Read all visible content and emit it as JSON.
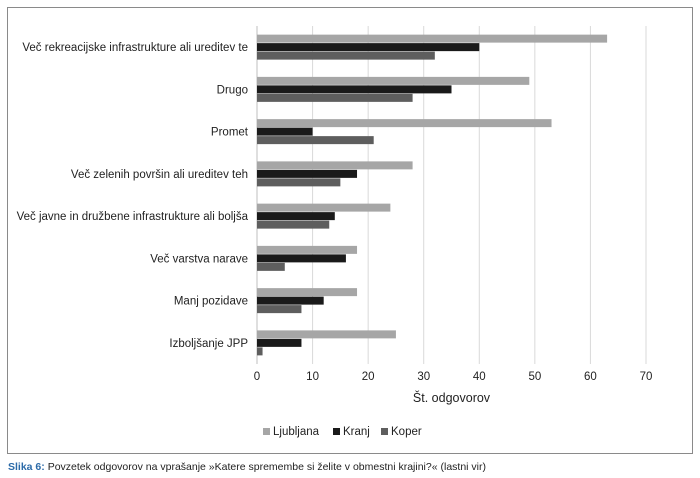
{
  "chart_data": {
    "type": "bar",
    "orientation": "horizontal",
    "categories": [
      "Več rekreacijske infrastrukture ali ureditev te",
      "Drugo",
      "Promet",
      "Več zelenih površin ali ureditev teh",
      "Več javne in družbene infrastrukture ali boljša",
      "Več varstva narave",
      "Manj pozidave",
      "Izboljšanje JPP"
    ],
    "series": [
      {
        "name": "Ljubljana",
        "color": "#a6a6a6",
        "values": [
          63,
          49,
          53,
          28,
          24,
          18,
          18,
          25
        ]
      },
      {
        "name": "Kranj",
        "color": "#1a1a1a",
        "values": [
          40,
          35,
          10,
          18,
          14,
          16,
          12,
          8
        ]
      },
      {
        "name": "Koper",
        "color": "#5e5e5e",
        "values": [
          32,
          28,
          21,
          15,
          13,
          5,
          8,
          1
        ]
      }
    ],
    "xlabel": "Št. odgovorov",
    "xlim": [
      0,
      70
    ],
    "xticks": [
      0,
      10,
      20,
      30,
      40,
      50,
      60,
      70
    ],
    "grid": true,
    "legend_position": "bottom"
  },
  "caption": {
    "label": "Slika 6:",
    "text": " Povzetek odgovorov na vprašanje »Katere spremembe si želite v obmestni krajini?« (lastni vir)"
  }
}
